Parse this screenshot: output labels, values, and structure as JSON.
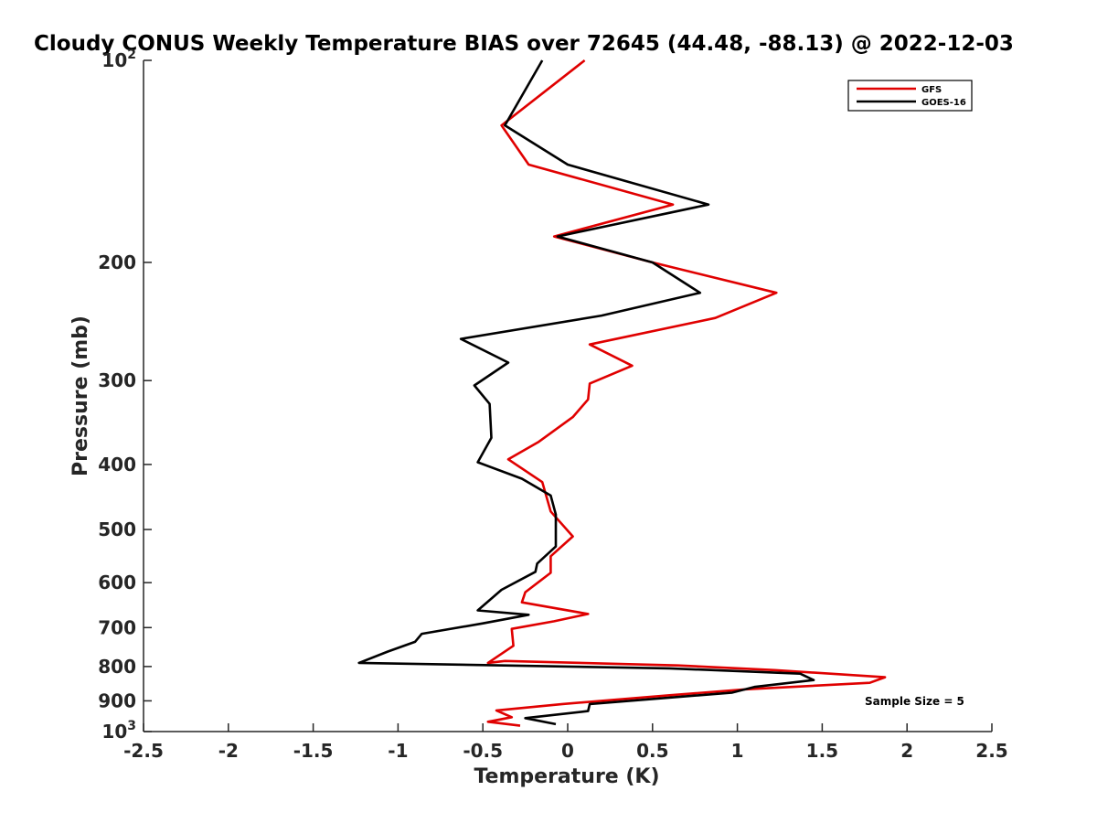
{
  "chart_data": {
    "type": "line",
    "title": "Cloudy CONUS Weekly Temperature BIAS over 72645 (44.48, -88.13) @ 2022-12-03",
    "xlabel": "Temperature (K)",
    "ylabel": "Pressure (mb)",
    "xlim": [
      -2.5,
      2.5
    ],
    "ylim": [
      100,
      1000
    ],
    "y_scale": "log",
    "y_reversed": true,
    "xticks": [
      -2.5,
      -2,
      -1.5,
      -1,
      -0.5,
      0,
      0.5,
      1,
      1.5,
      2,
      2.5
    ],
    "xtick_labels": [
      "-2.5",
      "-2",
      "-1.5",
      "-1",
      "-0.5",
      "0",
      "0.5",
      "1",
      "1.5",
      "2",
      "2.5"
    ],
    "yticks": [
      {
        "value": 100,
        "base": "10",
        "exp": "2"
      },
      {
        "value": 200,
        "label": "200"
      },
      {
        "value": 300,
        "label": "300"
      },
      {
        "value": 400,
        "label": "400"
      },
      {
        "value": 500,
        "label": "500"
      },
      {
        "value": 600,
        "label": "600"
      },
      {
        "value": 700,
        "label": "700"
      },
      {
        "value": 800,
        "label": "800"
      },
      {
        "value": 900,
        "label": "900"
      },
      {
        "value": 1000,
        "base": "10",
        "exp": "3"
      }
    ],
    "grid": false,
    "legend_position": "top-right",
    "annotation": "Sample Size = 5",
    "series": [
      {
        "name": "GFS",
        "color": "#e00000",
        "points": [
          [
            0.1,
            100
          ],
          [
            -0.39,
            125
          ],
          [
            -0.23,
            143
          ],
          [
            0.62,
            164
          ],
          [
            -0.08,
            183
          ],
          [
            0.5,
            200
          ],
          [
            1.23,
            222
          ],
          [
            0.87,
            242
          ],
          [
            0.13,
            265
          ],
          [
            0.38,
            285
          ],
          [
            0.13,
            303
          ],
          [
            0.12,
            320
          ],
          [
            0.03,
            340
          ],
          [
            -0.17,
            370
          ],
          [
            -0.35,
            393
          ],
          [
            -0.15,
            425
          ],
          [
            -0.1,
            470
          ],
          [
            0.03,
            512
          ],
          [
            -0.1,
            548
          ],
          [
            -0.1,
            580
          ],
          [
            -0.25,
            620
          ],
          [
            -0.27,
            642
          ],
          [
            0.12,
            668
          ],
          [
            -0.08,
            685
          ],
          [
            -0.33,
            703
          ],
          [
            -0.32,
            745
          ],
          [
            -0.47,
            790
          ],
          [
            -0.37,
            785
          ],
          [
            0.65,
            797
          ],
          [
            1.22,
            810
          ],
          [
            1.87,
            830
          ],
          [
            1.78,
            846
          ],
          [
            1.05,
            865
          ],
          [
            0.6,
            883
          ],
          [
            -0.03,
            910
          ],
          [
            -0.42,
            930
          ],
          [
            -0.33,
            952
          ],
          [
            -0.47,
            967
          ],
          [
            -0.28,
            980
          ]
        ]
      },
      {
        "name": "GOES-16",
        "color": "#000000",
        "points": [
          [
            -0.15,
            100
          ],
          [
            -0.37,
            125
          ],
          [
            0.0,
            143
          ],
          [
            0.83,
            164
          ],
          [
            -0.06,
            183
          ],
          [
            0.5,
            200
          ],
          [
            0.78,
            222
          ],
          [
            0.2,
            240
          ],
          [
            -0.63,
            260
          ],
          [
            -0.35,
            282
          ],
          [
            -0.55,
            305
          ],
          [
            -0.46,
            325
          ],
          [
            -0.45,
            365
          ],
          [
            -0.53,
            397
          ],
          [
            -0.27,
            420
          ],
          [
            -0.1,
            445
          ],
          [
            -0.07,
            475
          ],
          [
            -0.07,
            530
          ],
          [
            -0.18,
            562
          ],
          [
            -0.19,
            578
          ],
          [
            -0.39,
            615
          ],
          [
            -0.53,
            660
          ],
          [
            -0.23,
            670
          ],
          [
            -0.5,
            690
          ],
          [
            -0.86,
            715
          ],
          [
            -0.9,
            735
          ],
          [
            -1.06,
            760
          ],
          [
            -1.23,
            790
          ],
          [
            0.6,
            805
          ],
          [
            1.37,
            820
          ],
          [
            1.45,
            838
          ],
          [
            1.1,
            858
          ],
          [
            0.97,
            875
          ],
          [
            0.13,
            910
          ],
          [
            0.12,
            932
          ],
          [
            -0.25,
            955
          ],
          [
            -0.07,
            975
          ]
        ]
      }
    ]
  }
}
